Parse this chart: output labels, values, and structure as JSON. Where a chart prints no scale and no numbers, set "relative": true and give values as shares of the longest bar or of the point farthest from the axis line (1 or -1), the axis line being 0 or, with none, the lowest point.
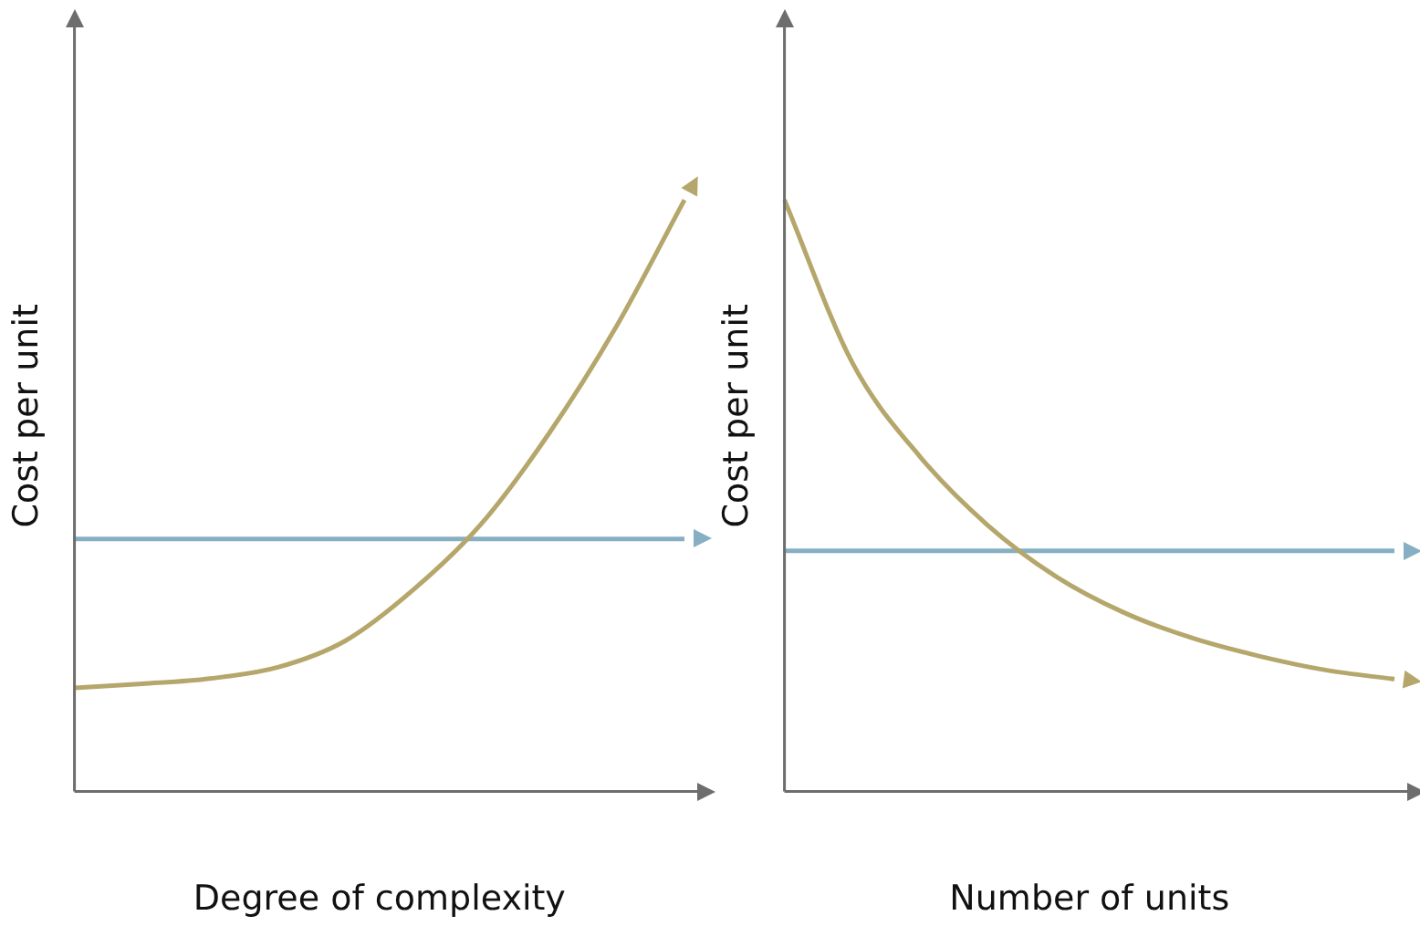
{
  "chart_data": [
    {
      "type": "line",
      "xlabel": "Degree of complexity",
      "ylabel": "Cost per unit",
      "relative": true,
      "marker": "none",
      "grid": false,
      "categories": [
        null,
        null,
        null,
        null,
        null,
        null,
        null,
        null,
        null,
        null
      ],
      "series": [
        {
          "color": "#b5a76b",
          "values": [
            0.175,
            0.182,
            0.191,
            0.21,
            0.255,
            0.341,
            0.452,
            0.605,
            0.787,
            1
          ]
        },
        {
          "color": "#86afc4",
          "values": [
            0.427,
            0.427,
            0.427,
            0.427,
            0.427,
            0.427,
            0.427,
            0.427,
            0.427,
            0.427
          ]
        }
      ]
    },
    {
      "type": "line",
      "xlabel": "Number of units",
      "ylabel": "Cost per unit",
      "relative": true,
      "marker": "none",
      "grid": false,
      "categories": [
        null,
        null,
        null,
        null,
        null,
        null,
        null,
        null,
        null,
        null
      ],
      "series": [
        {
          "color": "#b5a76b",
          "values": [
            1,
            0.725,
            0.566,
            0.45,
            0.364,
            0.303,
            0.26,
            0.229,
            0.205,
            0.19
          ]
        },
        {
          "color": "#86afc4",
          "values": [
            0.407,
            0.407,
            0.407,
            0.407,
            0.407,
            0.407,
            0.407,
            0.407,
            0.407,
            0.407
          ]
        }
      ]
    }
  ]
}
